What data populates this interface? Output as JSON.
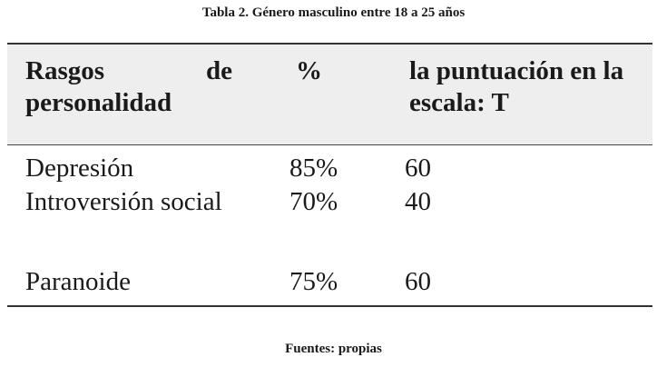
{
  "caption": "Tabla 2.  Género masculino entre 18 a 25 años",
  "table": {
    "headers": {
      "trait_word1": "Rasgos",
      "trait_word2": "de",
      "trait_word3": "personalidad",
      "percent": "%",
      "score": "la puntuación en la escala: T"
    },
    "rows": [
      {
        "trait": "Depresión",
        "percent": "85%",
        "score": "60"
      },
      {
        "trait": "Introversión social",
        "percent": "70%",
        "score": "40"
      },
      {
        "trait": "Paranoide",
        "percent": "75%",
        "score": "60"
      }
    ]
  },
  "source": "Fuentes: propias"
}
